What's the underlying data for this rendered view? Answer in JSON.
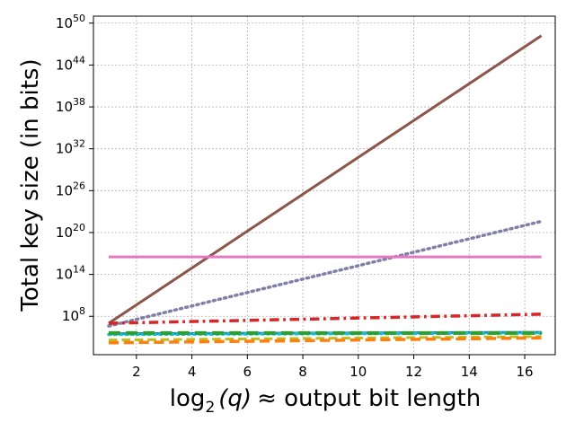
{
  "chart_data": {
    "type": "line",
    "xlabel_main": "log",
    "xlabel_sub": "2",
    "xlabel_var": "(q)",
    "xlabel_rest": "≈  output bit length",
    "ylabel": "Total key size (in bits)",
    "xlim": [
      0.45,
      17.1
    ],
    "ylim_log10": [
      2.5,
      51
    ],
    "y_scale": "log",
    "grid": true,
    "x_ticks": [
      2,
      4,
      6,
      8,
      10,
      12,
      14,
      16
    ],
    "x_tick_labels": [
      "2",
      "4",
      "6",
      "8",
      "10",
      "12",
      "14",
      "16"
    ],
    "y_ticks_log10": [
      8,
      14,
      20,
      26,
      32,
      38,
      44,
      50
    ],
    "y_tick_base": "10",
    "y_tick_exps": [
      "8",
      "14",
      "20",
      "26",
      "32",
      "38",
      "44",
      "50"
    ],
    "series": [
      {
        "color": "#8c564b",
        "style": "solid",
        "width": 3,
        "x": [
          1,
          16.6
        ],
        "log10_y": [
          7.0,
          48.2
        ]
      },
      {
        "color": "#7f7fa8",
        "style": "dotted",
        "width": 3.5,
        "x": [
          1,
          16.6
        ],
        "log10_y": [
          6.6,
          21.6
        ]
      },
      {
        "color": "#e377c2",
        "style": "solid",
        "width": 3,
        "x": [
          1,
          16.6
        ],
        "log10_y": [
          16.5,
          16.5
        ]
      },
      {
        "color": "#d62728",
        "style": "dashdot",
        "width": 3.5,
        "x": [
          1,
          16.6
        ],
        "log10_y": [
          7.0,
          8.3
        ]
      },
      {
        "color": "#1f77b4",
        "style": "solid",
        "width": 3,
        "x": [
          1,
          16.6
        ],
        "log10_y": [
          5.5,
          5.7
        ]
      },
      {
        "color": "#17becf",
        "style": "dotted",
        "width": 3.5,
        "x": [
          1,
          16.6
        ],
        "log10_y": [
          5.4,
          5.6
        ]
      },
      {
        "color": "#2ca02c",
        "style": "dashed",
        "width": 4,
        "x": [
          1,
          16.6
        ],
        "log10_y": [
          5.6,
          5.6
        ]
      },
      {
        "color": "#bcbd22",
        "style": "dashed",
        "width": 3,
        "x": [
          1,
          16.6
        ],
        "log10_y": [
          4.6,
          5.1
        ]
      },
      {
        "color": "#ff7f0e",
        "style": "dashed",
        "width": 3.5,
        "x": [
          1,
          16.6
        ],
        "log10_y": [
          4.2,
          4.9
        ]
      }
    ]
  }
}
